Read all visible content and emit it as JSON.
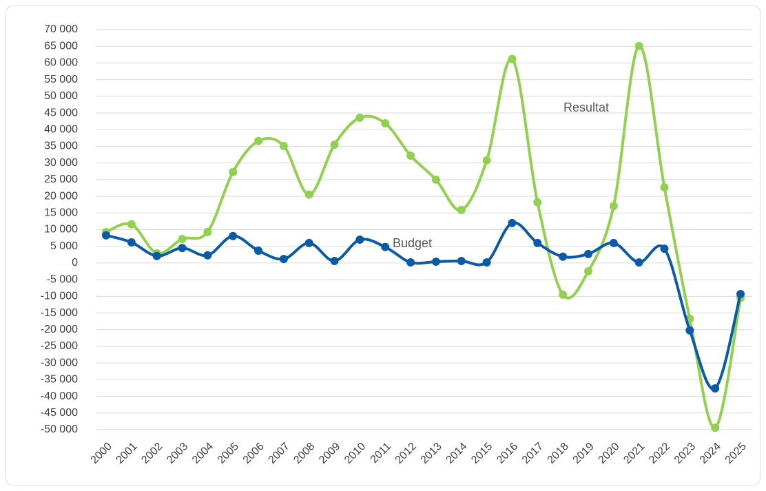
{
  "chart_data": {
    "type": "line",
    "categories": [
      "2000",
      "2001",
      "2002",
      "2003",
      "2004",
      "2005",
      "2006",
      "2007",
      "2008",
      "2009",
      "2010",
      "2011",
      "2012",
      "2013",
      "2014",
      "2015",
      "2016",
      "2017",
      "2018",
      "2019",
      "2020",
      "2021",
      "2022",
      "2023",
      "2024",
      "2025"
    ],
    "series": [
      {
        "name": "Resultat",
        "color": "#92d050",
        "values": [
          9300,
          11600,
          2900,
          7200,
          9300,
          27300,
          36600,
          35100,
          20500,
          35500,
          43600,
          41900,
          32200,
          25000,
          15900,
          30800,
          61200,
          18200,
          -9500,
          -2500,
          17100,
          65100,
          22700,
          -16700,
          -49400,
          -10500
        ]
      },
      {
        "name": "Budget",
        "color": "#0b5aa5",
        "values": [
          8300,
          6200,
          2100,
          4500,
          2300,
          8100,
          3700,
          1200,
          6000,
          600,
          7000,
          4800,
          200,
          400,
          600,
          200,
          12000,
          6000,
          1900,
          2700,
          6000,
          200,
          4300,
          -20200,
          -37600,
          -9300
        ]
      }
    ],
    "ylim": [
      -50000,
      70000
    ],
    "yticks": [
      {
        "value": -50000,
        "label": "-50 000"
      },
      {
        "value": -45000,
        "label": "-45 000"
      },
      {
        "value": -40000,
        "label": "-40 000"
      },
      {
        "value": -35000,
        "label": "-35 000"
      },
      {
        "value": -30000,
        "label": "-30 000"
      },
      {
        "value": -25000,
        "label": "-25 000"
      },
      {
        "value": -20000,
        "label": "-20 000"
      },
      {
        "value": -15000,
        "label": "-15 000"
      },
      {
        "value": -10000,
        "label": "-10 000"
      },
      {
        "value": -5000,
        "label": "-5 000"
      },
      0,
      {
        "value": 5000,
        "label": "5 000"
      },
      {
        "value": 10000,
        "label": "10 000"
      },
      {
        "value": 15000,
        "label": "15 000"
      },
      {
        "value": 20000,
        "label": "20 000"
      },
      {
        "value": 25000,
        "label": "25 000"
      },
      {
        "value": 30000,
        "label": "30 000"
      },
      {
        "value": 35000,
        "label": "35 000"
      },
      {
        "value": 40000,
        "label": "40 000"
      },
      {
        "value": 45000,
        "label": "45 000"
      },
      {
        "value": 50000,
        "label": "50 000"
      },
      {
        "value": 55000,
        "label": "55 000"
      },
      {
        "value": 60000,
        "label": "60 000"
      },
      {
        "value": 65000,
        "label": "65 000"
      },
      {
        "value": 70000,
        "label": "70 000"
      }
    ],
    "grid": true,
    "smooth": true
  }
}
